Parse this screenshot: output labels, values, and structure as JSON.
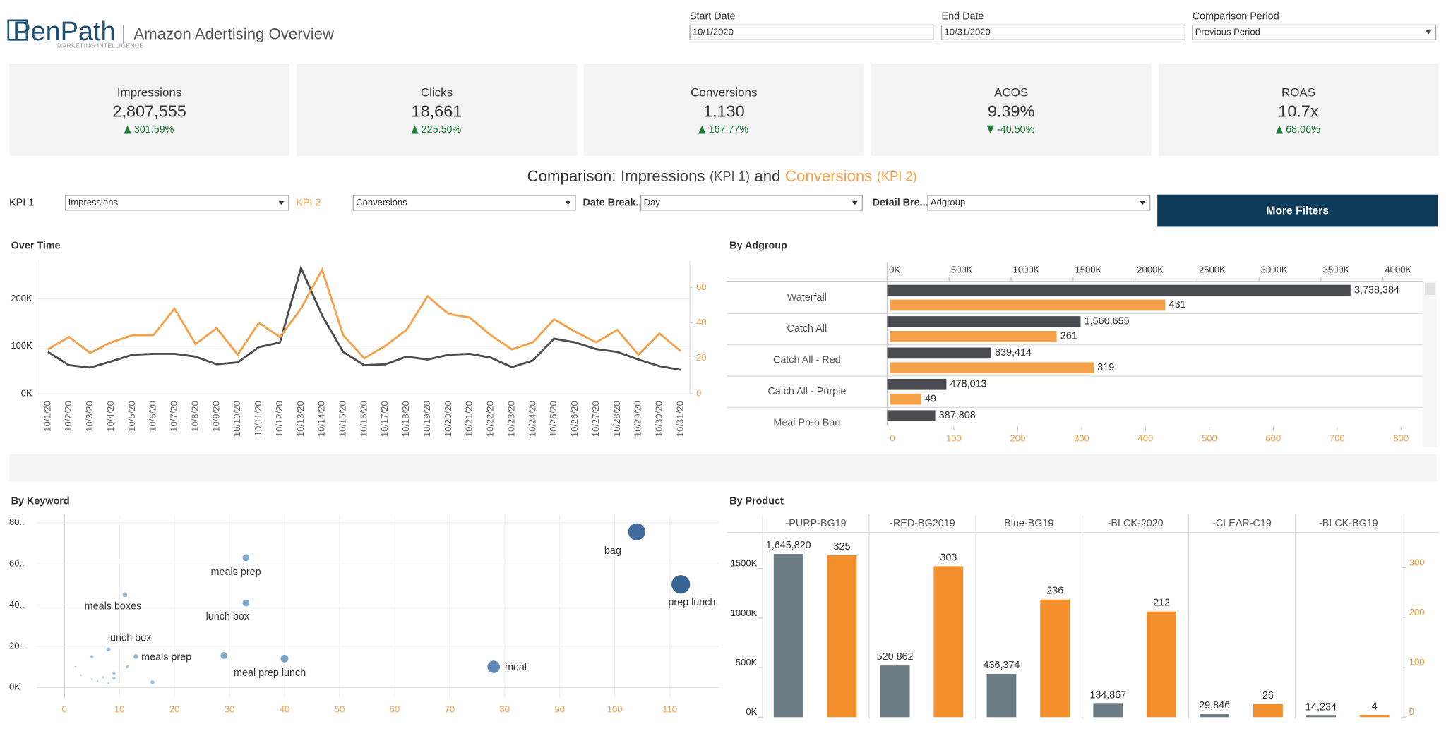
{
  "header": {
    "logo": "PenPath",
    "logo_sub": "MARKETING INTELLIGENCE",
    "title": "Amazon Adertising Overview"
  },
  "filters": [
    {
      "label": "Start Date",
      "value": "10/1/2020"
    },
    {
      "label": "End Date",
      "value": "10/31/2020"
    },
    {
      "label": "Comparison Period",
      "value": "Previous Period"
    }
  ],
  "kpis": [
    {
      "label": "Impressions",
      "value": "2,807,555",
      "change": "301.59%",
      "direction": "up"
    },
    {
      "label": "Clicks",
      "value": "18,661",
      "change": "225.50%",
      "direction": "up"
    },
    {
      "label": "Conversions",
      "value": "1,130",
      "change": "167.77%",
      "direction": "up"
    },
    {
      "label": "ACOS",
      "value": "9.39%",
      "change": "-40.50%",
      "direction": "down"
    },
    {
      "label": "ROAS",
      "value": "10.7x",
      "change": "68.06%",
      "direction": "up"
    }
  ],
  "comparison": {
    "prefix": "Comparison:",
    "kpi1": "Impressions",
    "kpi1_tag": "(KPI 1)",
    "joiner": "and",
    "kpi2": "Conversions",
    "kpi2_tag": "(KPI 2)"
  },
  "controls": [
    {
      "label": "KPI 1",
      "value": "Impressions"
    },
    {
      "label": "KPI 2",
      "value": "Conversions"
    },
    {
      "label": "Date Break...",
      "value": "Day"
    },
    {
      "label": "Detail Bre...",
      "value": "Adgroup"
    }
  ],
  "button": "More Filters",
  "chart_data": [
    {
      "type": "line",
      "title": "Over Time",
      "categories": [
        "10/1/20",
        "10/2/20",
        "10/3/20",
        "10/4/20",
        "10/5/20",
        "10/6/20",
        "10/7/20",
        "10/8/20",
        "10/9/20",
        "10/10/20",
        "10/11/20",
        "10/12/20",
        "10/13/20",
        "10/14/20",
        "10/15/20",
        "10/16/20",
        "10/17/20",
        "10/18/20",
        "10/19/20",
        "10/20/20",
        "10/21/20",
        "10/22/20",
        "10/23/20",
        "10/24/20",
        "10/25/20",
        "10/26/20",
        "10/27/20",
        "10/28/20",
        "10/29/20",
        "10/30/20",
        "10/31/20"
      ],
      "series": [
        {
          "name": "Impressions",
          "color": "#4a4c50",
          "values": [
            88000,
            60000,
            55000,
            68000,
            82000,
            84000,
            84000,
            78000,
            62000,
            66000,
            98000,
            108000,
            265000,
            165000,
            88000,
            60000,
            62000,
            78000,
            72000,
            82000,
            84000,
            76000,
            56000,
            70000,
            116000,
            108000,
            94000,
            88000,
            72000,
            58000,
            50000
          ]
        },
        {
          "name": "Conversions",
          "color": "#f5a04a",
          "axis": "y2",
          "values": [
            25,
            32,
            23,
            29,
            33,
            33,
            48,
            28,
            37,
            22,
            40,
            32,
            48,
            70,
            33,
            20,
            27,
            36,
            55,
            45,
            43,
            33,
            25,
            29,
            42,
            35,
            29,
            36,
            22,
            34,
            24
          ]
        }
      ],
      "ylim": [
        0,
        280000
      ],
      "yticks": [
        {
          "value": 0,
          "label": "0K"
        },
        {
          "value": 100000,
          "label": "100K"
        },
        {
          "value": 200000,
          "label": "200K"
        }
      ],
      "y2lim": [
        0,
        75
      ],
      "y2ticks": [
        0,
        20,
        40,
        60
      ],
      "grid": true
    },
    {
      "type": "hbar",
      "title": "By Adgroup",
      "categories": [
        "Waterfall",
        "Catch All",
        "Catch All - Red",
        "Catch All - Purple",
        "Meal Prep Bag"
      ],
      "series": [
        {
          "name": "Impressions",
          "color": "#4a4c50",
          "values": [
            3738384,
            1560655,
            839414,
            478013,
            387808
          ],
          "value_labels": [
            "3,738,384",
            "1,560,655",
            "839,414",
            "478,013",
            "387,808"
          ]
        },
        {
          "name": "Conversions",
          "color": "#f5a04a",
          "axis": "x2",
          "values": [
            431,
            261,
            319,
            49,
            null
          ]
        }
      ],
      "xlim": [
        0,
        4300000
      ],
      "xticks": [
        {
          "value": 0,
          "label": "0K"
        },
        {
          "value": 500000,
          "label": "500K"
        },
        {
          "value": 1000000,
          "label": "1000K"
        },
        {
          "value": 1500000,
          "label": "1500K"
        },
        {
          "value": 2000000,
          "label": "2000K"
        },
        {
          "value": 2500000,
          "label": "2500K"
        },
        {
          "value": 3000000,
          "label": "3000K"
        },
        {
          "value": 3500000,
          "label": "3500K"
        },
        {
          "value": 4000000,
          "label": "4000K"
        }
      ],
      "x2lim": [
        0,
        830
      ],
      "x2ticks": [
        0,
        100,
        200,
        300,
        400,
        500,
        600,
        700,
        800
      ]
    },
    {
      "type": "scatter",
      "title": "By Keyword",
      "labels": [
        "bag",
        "prep lunch",
        "meals prep",
        "meals boxes",
        "lunch box",
        "lunch box",
        "meals prep",
        null,
        "meal prep lunch",
        "meal",
        null,
        null,
        null,
        null,
        null,
        null,
        null,
        null,
        null,
        null,
        null
      ],
      "x": [
        104,
        112,
        33,
        11,
        33,
        8,
        13,
        29,
        40,
        78,
        5,
        11.5,
        9,
        9,
        16,
        2,
        5,
        6,
        7,
        8,
        3
      ],
      "y": [
        75.5,
        50,
        63,
        45,
        41,
        18.5,
        15,
        15.5,
        14,
        10,
        15,
        10,
        7,
        4.5,
        2.5,
        10,
        4,
        3,
        5,
        2,
        6
      ],
      "sizes": [
        22,
        24,
        9,
        6,
        9,
        5,
        6,
        9,
        10,
        16,
        4,
        4,
        4,
        4,
        5,
        2,
        2,
        2,
        2,
        2,
        2
      ],
      "xlim": [
        -5,
        119
      ],
      "xticks": [
        0,
        10,
        20,
        30,
        40,
        50,
        60,
        70,
        80,
        90,
        100,
        110
      ],
      "xtick_color": "#f5a04a",
      "ylim": [
        -5,
        84
      ],
      "yticks": [
        {
          "value": 0,
          "label": "0K"
        },
        {
          "value": 20,
          "label": "20.."
        },
        {
          "value": 40,
          "label": "40.."
        },
        {
          "value": 60,
          "label": "60.."
        },
        {
          "value": 80,
          "label": "80.."
        }
      ],
      "grid": true
    },
    {
      "type": "bar",
      "title": "By Product",
      "categories": [
        "-PURP-BG19",
        "-RED-BG2019",
        "Blue-BG19",
        "-BLCK-2020",
        "-CLEAR-C19",
        "-BLCK-BG19"
      ],
      "series": [
        {
          "name": "Impressions",
          "color": "#6b7b83",
          "values": [
            1645820,
            520862,
            436374,
            134867,
            29846,
            14234
          ],
          "value_labels": [
            "1,645,820",
            "520,862",
            "436,374",
            "134,867",
            "29,846",
            "14,234"
          ]
        },
        {
          "name": "Conversions",
          "color": "#f28e2b",
          "axis": "y2",
          "values": [
            325,
            303,
            236,
            212,
            26,
            4
          ]
        }
      ],
      "ylim": [
        0,
        1860000
      ],
      "yticks": [
        {
          "value": 0,
          "label": "0K"
        },
        {
          "value": 500000,
          "label": "500K"
        },
        {
          "value": 1000000,
          "label": "1000K"
        },
        {
          "value": 1500000,
          "label": "1500K"
        }
      ],
      "y2lim": [
        0,
        370
      ],
      "y2ticks": [
        0,
        100,
        200,
        300
      ]
    }
  ]
}
